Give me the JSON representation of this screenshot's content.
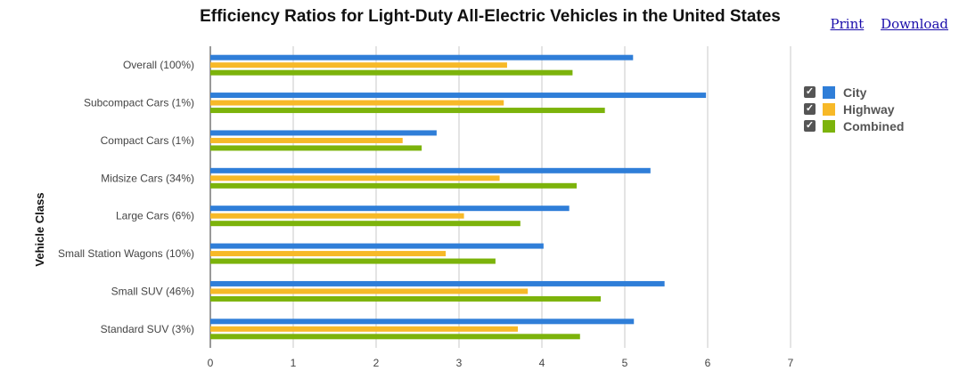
{
  "header": {
    "title": "Efficiency Ratios for Light-Duty All-Electric Vehicles in the United States",
    "print_label": "Print",
    "download_label": "Download"
  },
  "legend": [
    {
      "label": "City",
      "color": "#2f7ed8",
      "checked": true
    },
    {
      "label": "Highway",
      "color": "#f7b928",
      "checked": true
    },
    {
      "label": "Combined",
      "color": "#7cb30b",
      "checked": true
    }
  ],
  "chart_data": {
    "type": "bar",
    "orientation": "horizontal",
    "title": "Efficiency Ratios for Light-Duty All-Electric Vehicles in the United States",
    "xlabel": "",
    "ylabel": "Vehicle Class",
    "xlim": [
      0,
      7
    ],
    "xticks": [
      0,
      1,
      2,
      3,
      4,
      5,
      6,
      7
    ],
    "grid": true,
    "legend_position": "right",
    "categories": [
      "Overall (100%)",
      "Subcompact Cars (1%)",
      "Compact Cars (1%)",
      "Midsize Cars (34%)",
      "Large Cars (6%)",
      "Small Station Wagons (10%)",
      "Small SUV (46%)",
      "Standard SUV (3%)"
    ],
    "series": [
      {
        "name": "City",
        "color": "#2f7ed8",
        "values": [
          5.1,
          5.98,
          2.73,
          5.31,
          4.33,
          4.02,
          5.48,
          5.11
        ]
      },
      {
        "name": "Highway",
        "color": "#f7b928",
        "values": [
          3.58,
          3.54,
          2.32,
          3.49,
          3.06,
          2.84,
          3.83,
          3.71
        ]
      },
      {
        "name": "Combined",
        "color": "#7cb30b",
        "values": [
          4.37,
          4.76,
          2.55,
          4.42,
          3.74,
          3.44,
          4.71,
          4.46
        ]
      }
    ]
  }
}
